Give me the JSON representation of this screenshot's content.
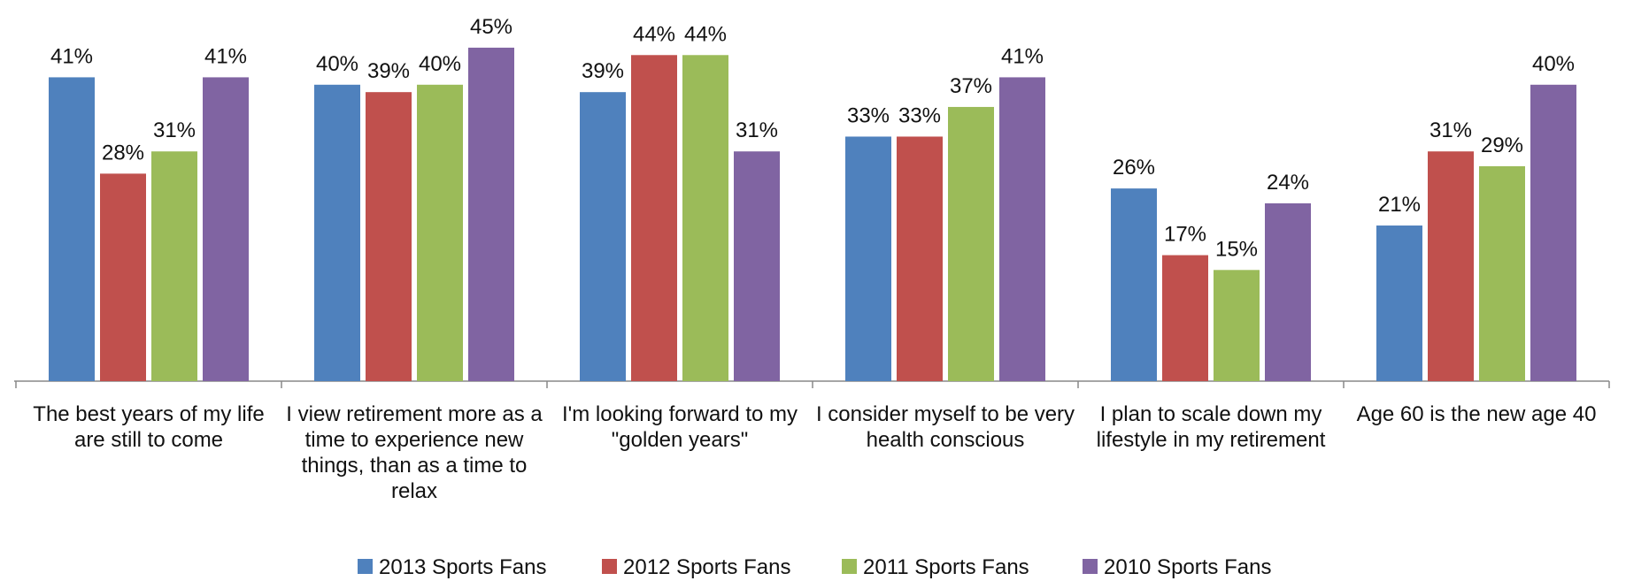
{
  "chart_data": {
    "type": "bar",
    "categories": [
      "The best years of my life are still to come",
      "I view retirement more as a time to experience new things, than as a time to relax",
      "I'm looking forward to my \"golden years\"",
      "I consider myself to be very health conscious",
      "I plan to scale down my lifestyle in my retirement",
      "Age 60 is the new age 40"
    ],
    "series": [
      {
        "name": "2013 Sports Fans",
        "color": "#4f81bd",
        "values": [
          41,
          40,
          39,
          33,
          26,
          21
        ],
        "value_labels": [
          "41%",
          "40%",
          "39%",
          "33%",
          "26%",
          "21%"
        ]
      },
      {
        "name": "2012 Sports Fans",
        "color": "#c0504d",
        "values": [
          28,
          39,
          44,
          33,
          17,
          31
        ],
        "value_labels": [
          "28%",
          "39%",
          "44%",
          "33%",
          "17%",
          "31%"
        ]
      },
      {
        "name": "2011 Sports Fans",
        "color": "#9bbb59",
        "values": [
          31,
          40,
          44,
          37,
          15,
          29
        ],
        "value_labels": [
          "31%",
          "40%",
          "44%",
          "37%",
          "15%",
          "29%"
        ]
      },
      {
        "name": "2010 Sports Fans",
        "color": "#8064a2",
        "values": [
          41,
          45,
          31,
          41,
          24,
          40
        ],
        "value_labels": [
          "41%",
          "45%",
          "31%",
          "41%",
          "24%",
          "40%"
        ]
      }
    ],
    "legend": "bottom"
  }
}
